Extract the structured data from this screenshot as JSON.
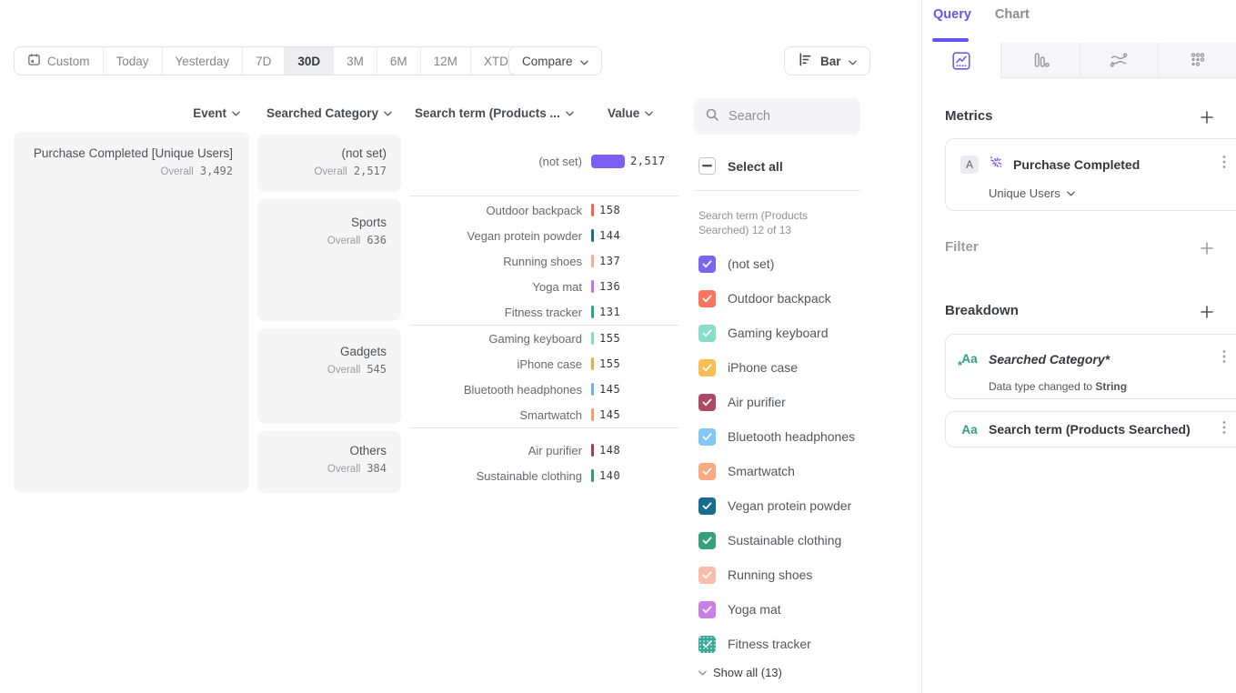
{
  "toolbar": {
    "ranges": {
      "custom": "Custom",
      "today": "Today",
      "yesterday": "Yesterday",
      "d7": "7D",
      "d30": "30D",
      "m3": "3M",
      "m6": "6M",
      "m12": "12M",
      "xtd": "XTD"
    },
    "active_range": "30D",
    "compare": "Compare",
    "chart_type": "Bar"
  },
  "headers": {
    "event": "Event",
    "category": "Searched Category",
    "term": "Search term (Products ...",
    "value": "Value"
  },
  "event_card": {
    "title": "Purchase Completed [Unique Users]",
    "overall_label": "Overall",
    "value": "3,492"
  },
  "groups": [
    {
      "category": "(not set)",
      "overall_label": "Overall",
      "overall": "2,517",
      "terms": [
        {
          "label": "(not set)",
          "value": "2,517",
          "num": 2517,
          "color": "#7b5ff2"
        }
      ]
    },
    {
      "category": "Sports",
      "overall_label": "Overall",
      "overall": "636",
      "terms": [
        {
          "label": "Outdoor backpack",
          "value": "158",
          "num": 158,
          "color": "#f4654a"
        },
        {
          "label": "Vegan protein powder",
          "value": "144",
          "num": 144,
          "color": "#156f8c"
        },
        {
          "label": "Running shoes",
          "value": "137",
          "num": 137,
          "color": "#f8ab98"
        },
        {
          "label": "Yoga mat",
          "value": "136",
          "num": 136,
          "color": "#c973e0"
        },
        {
          "label": "Fitness tracker",
          "value": "131",
          "num": 131,
          "color": "#2da687"
        }
      ]
    },
    {
      "category": "Gadgets",
      "overall_label": "Overall",
      "overall": "545",
      "terms": [
        {
          "label": "Gaming keyboard",
          "value": "155",
          "num": 155,
          "color": "#82ddc8"
        },
        {
          "label": "iPhone case",
          "value": "155",
          "num": 155,
          "color": "#f2a93b"
        },
        {
          "label": "Bluetooth headphones",
          "value": "145",
          "num": 145,
          "color": "#6cb4f0"
        },
        {
          "label": "Smartwatch",
          "value": "145",
          "num": 145,
          "color": "#f49d67"
        }
      ]
    },
    {
      "category": "Others",
      "overall_label": "Overall",
      "overall": "384",
      "terms": [
        {
          "label": "Air purifier",
          "value": "148",
          "num": 148,
          "color": "#a63d55"
        },
        {
          "label": "Sustainable clothing",
          "value": "140",
          "num": 140,
          "color": "#2b9e72"
        }
      ]
    }
  ],
  "legend": {
    "search_placeholder": "Search",
    "select_all": "Select all",
    "caption_line1": "Search term (Products",
    "caption_line2": "Searched) 12 of 13",
    "items": [
      {
        "label": "(not set)",
        "color": "#7b64f2"
      },
      {
        "label": "Outdoor backpack",
        "color": "#f8765c"
      },
      {
        "label": "Gaming keyboard",
        "color": "#85dec9"
      },
      {
        "label": "iPhone case",
        "color": "#f6bf4f"
      },
      {
        "label": "Air purifier",
        "color": "#ad4a63"
      },
      {
        "label": "Bluetooth headphones",
        "color": "#83c7f4"
      },
      {
        "label": "Smartwatch",
        "color": "#f9aa7e"
      },
      {
        "label": "Vegan protein powder",
        "color": "#156f8c",
        "texture": "none"
      },
      {
        "label": "Sustainable clothing",
        "color": "#36a27c"
      },
      {
        "label": "Running shoes",
        "color": "#f9bcab"
      },
      {
        "label": "Yoga mat",
        "color": "#c980e4"
      },
      {
        "label": "Fitness tracker",
        "color": "#36a895",
        "texture": "dotted"
      }
    ],
    "show_all": "Show all (13)"
  },
  "query_panel": {
    "tabs": {
      "query": "Query",
      "chart": "Chart"
    },
    "metrics": {
      "heading": "Metrics",
      "badge": "A",
      "metric_name": "Purchase Completed",
      "aggregation": "Unique Users"
    },
    "filter": {
      "heading": "Filter"
    },
    "breakdown": {
      "heading": "Breakdown",
      "items": [
        {
          "icon": "Aa",
          "star": "*",
          "name": "Searched Category*",
          "subtext_prefix": "Data type changed to ",
          "subtext_bold": "String"
        },
        {
          "icon": "Aa",
          "name": "Search term (Products Searched)"
        }
      ]
    }
  },
  "chart_data": {
    "type": "bar",
    "title": "Purchase Completed [Unique Users]",
    "overall": 3492,
    "date_range": "30D",
    "categories": [
      "(not set)",
      "Sports",
      "Gadgets",
      "Others"
    ],
    "category_totals": [
      2517,
      636,
      545,
      384
    ],
    "series": [
      {
        "category": "(not set)",
        "terms": [
          [
            "(not set)",
            2517
          ]
        ]
      },
      {
        "category": "Sports",
        "terms": [
          [
            "Outdoor backpack",
            158
          ],
          [
            "Vegan protein powder",
            144
          ],
          [
            "Running shoes",
            137
          ],
          [
            "Yoga mat",
            136
          ],
          [
            "Fitness tracker",
            131
          ]
        ]
      },
      {
        "category": "Gadgets",
        "terms": [
          [
            "Gaming keyboard",
            155
          ],
          [
            "iPhone case",
            155
          ],
          [
            "Bluetooth headphones",
            145
          ],
          [
            "Smartwatch",
            145
          ]
        ]
      },
      {
        "category": "Others",
        "terms": [
          [
            "Air purifier",
            148
          ],
          [
            "Sustainable clothing",
            140
          ]
        ]
      }
    ]
  }
}
